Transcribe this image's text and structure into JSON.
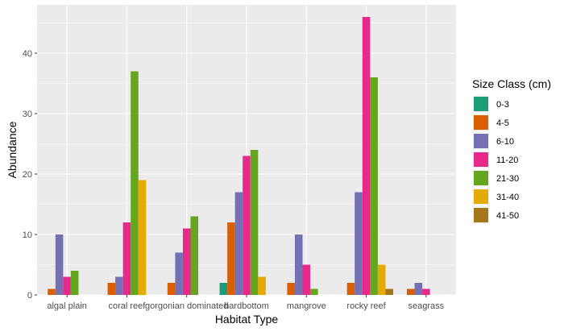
{
  "chart_data": {
    "type": "bar",
    "title": "",
    "xlabel": "Habitat Type",
    "ylabel": "Abundance",
    "ylim": [
      0,
      48
    ],
    "yticks": [
      0,
      10,
      20,
      30,
      40
    ],
    "grid": true,
    "legend_position": "right",
    "legend_title": "Size Class (cm)",
    "categories": [
      "algal plain",
      "coral reef",
      "gorgonian dominated",
      "hardbottom",
      "mangrove",
      "rocky reef",
      "seagrass"
    ],
    "series": [
      {
        "name": "0-3",
        "color": "#1B9E77",
        "values": [
          0,
          0,
          0,
          2,
          0,
          0,
          0
        ]
      },
      {
        "name": "4-5",
        "color": "#D95F02",
        "values": [
          1,
          2,
          2,
          12,
          2,
          2,
          1
        ]
      },
      {
        "name": "6-10",
        "color": "#7570B3",
        "values": [
          10,
          3,
          7,
          17,
          10,
          17,
          2
        ]
      },
      {
        "name": "11-20",
        "color": "#E7298A",
        "values": [
          3,
          12,
          11,
          23,
          5,
          46,
          1
        ]
      },
      {
        "name": "21-30",
        "color": "#66A61E",
        "values": [
          4,
          37,
          13,
          24,
          1,
          36,
          0
        ]
      },
      {
        "name": "31-40",
        "color": "#E6AB02",
        "values": [
          0,
          19,
          0,
          3,
          0,
          5,
          0
        ]
      },
      {
        "name": "41-50",
        "color": "#A6761D",
        "values": [
          0,
          0,
          0,
          0,
          0,
          1,
          0
        ]
      }
    ]
  }
}
